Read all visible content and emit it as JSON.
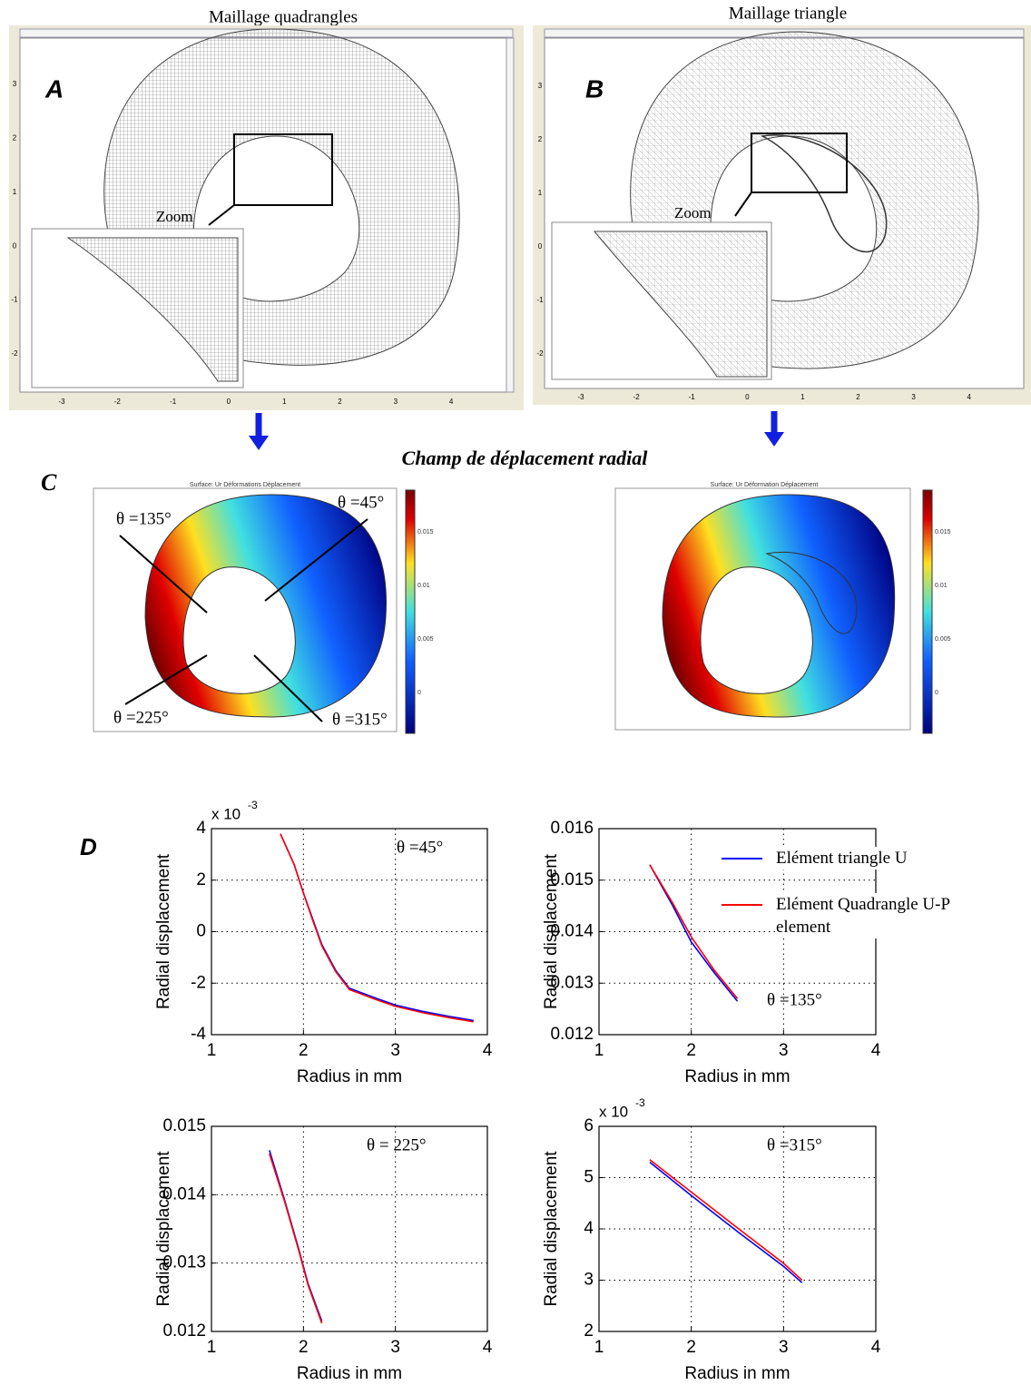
{
  "panel_a": {
    "label": "A",
    "title": "Maillage quadrangles",
    "zoom": "Zoom",
    "x_ticks": [
      "-3",
      "-2",
      "-1",
      "0",
      "1",
      "2",
      "3",
      "4"
    ],
    "y_ticks": [
      "3",
      "2",
      "1",
      "0",
      "-1",
      "-2"
    ]
  },
  "panel_b": {
    "label": "B",
    "title": "Maillage triangle",
    "zoom": "Zoom",
    "x_ticks": [
      "-3",
      "-2",
      "-1",
      "0",
      "1",
      "2",
      "3",
      "4"
    ],
    "y_ticks": [
      "3",
      "2",
      "1",
      "0",
      "-1",
      "-2"
    ]
  },
  "panel_c": {
    "label": "C",
    "title": "Champ de déplacement radial",
    "left": {
      "plot_title": "Surface: Ur  Déformations Déplacement",
      "angles": [
        "θ =135°",
        "θ =45°",
        "θ =225°",
        "θ =315°"
      ],
      "colorbar_ticks": [
        "0.015",
        "0.01",
        "0.005",
        "0"
      ]
    },
    "right": {
      "plot_title": "Surface: Ur  Déformation Déplacement",
      "colorbar_ticks": [
        "0.015",
        "0.01",
        "0.005",
        "0"
      ]
    }
  },
  "panel_d": {
    "label": "D"
  },
  "chart_data": [
    {
      "type": "line",
      "annotation": "θ =45°",
      "scale_label": "x 10",
      "scale_exponent": "-3",
      "x_label": "Radius in mm",
      "y_label": "Radial displacement",
      "grid": true,
      "xlim": [
        1,
        4
      ],
      "xticks": [
        1,
        2,
        3,
        4
      ],
      "ylim": [
        -4,
        4
      ],
      "yticks": [
        -4,
        -2,
        0,
        2,
        4
      ],
      "x": [
        1.75,
        1.9,
        2.0,
        2.1,
        2.2,
        2.35,
        2.5,
        2.8,
        3.0,
        3.3,
        3.6,
        3.85
      ],
      "series": [
        {
          "color": "#0000ff",
          "values": [
            3.8,
            2.6,
            1.5,
            0.5,
            -0.5,
            -1.5,
            -2.2,
            -2.6,
            -2.85,
            -3.1,
            -3.3,
            -3.45
          ]
        },
        {
          "color": "#ff0000",
          "values": [
            3.8,
            2.6,
            1.5,
            0.45,
            -0.55,
            -1.55,
            -2.25,
            -2.65,
            -2.9,
            -3.15,
            -3.35,
            -3.5
          ]
        }
      ]
    },
    {
      "type": "line",
      "annotation": "θ =135°",
      "legend": true,
      "x_label": "Radius in mm",
      "y_label": "Radial displacement",
      "grid": true,
      "xlim": [
        1,
        4
      ],
      "xticks": [
        1,
        2,
        3,
        4
      ],
      "ylim": [
        0.012,
        0.016
      ],
      "yticks": [
        0.012,
        0.013,
        0.014,
        0.015,
        0.016
      ],
      "x": [
        1.55,
        1.8,
        2.0,
        2.25,
        2.5
      ],
      "series": [
        {
          "name": "Elément triangle U",
          "color": "#0000ff",
          "values": [
            0.0153,
            0.0145,
            0.0138,
            0.0132,
            0.01265
          ]
        },
        {
          "name": "Elément Quadrangle U-P element",
          "color": "#ff0000",
          "values": [
            0.0153,
            0.01455,
            0.0139,
            0.01325,
            0.0127
          ]
        }
      ]
    },
    {
      "type": "line",
      "annotation": "θ = 225°",
      "x_label": "Radius in mm",
      "y_label": "Radial displacement",
      "grid": true,
      "xlim": [
        1,
        4
      ],
      "xticks": [
        1,
        2,
        3,
        4
      ],
      "ylim": [
        0.012,
        0.015
      ],
      "yticks": [
        0.012,
        0.013,
        0.014,
        0.015
      ],
      "x": [
        1.63,
        1.8,
        1.95,
        2.05,
        2.2
      ],
      "series": [
        {
          "color": "#0000ff",
          "values": [
            0.01465,
            0.0139,
            0.0132,
            0.0127,
            0.01215
          ]
        },
        {
          "color": "#ff0000",
          "values": [
            0.0146,
            0.01388,
            0.01318,
            0.01268,
            0.01212
          ]
        }
      ]
    },
    {
      "type": "line",
      "annotation": "θ =315°",
      "scale_label": "x 10",
      "scale_exponent": "-3",
      "x_label": "Radius in mm",
      "y_label": "Radial displacement",
      "grid": true,
      "xlim": [
        1,
        4
      ],
      "xticks": [
        1,
        2,
        3,
        4
      ],
      "ylim": [
        2,
        6
      ],
      "yticks": [
        2,
        3,
        4,
        5,
        6
      ],
      "x": [
        1.55,
        2.0,
        2.5,
        3.0,
        3.2
      ],
      "series": [
        {
          "color": "#0000ff",
          "values": [
            5.3,
            4.65,
            3.95,
            3.27,
            2.95
          ]
        },
        {
          "color": "#ff0000",
          "values": [
            5.35,
            4.72,
            4.02,
            3.33,
            3.0
          ]
        }
      ]
    }
  ]
}
